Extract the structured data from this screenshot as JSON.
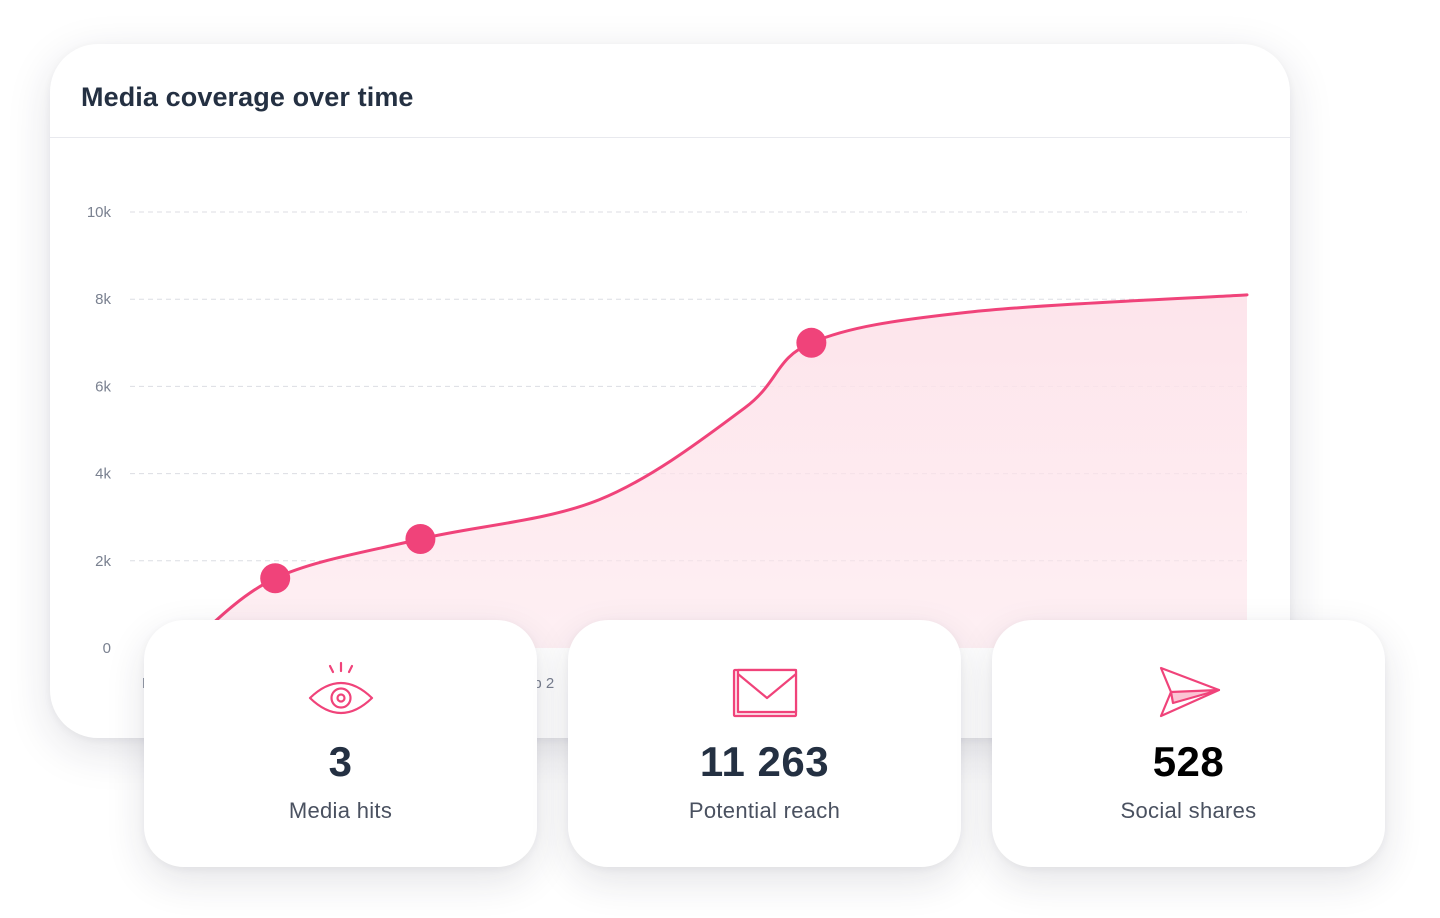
{
  "colors": {
    "accent": "#f0437a",
    "area_fill": "#fde3ea",
    "grid": "#dcdde3",
    "text_dark": "#243042",
    "text_muted": "#7a8190"
  },
  "chart_card": {
    "title": "Media coverage over time"
  },
  "chart_data": {
    "type": "area",
    "title": "Media coverage over time",
    "y_ticks": [
      "0",
      "2k",
      "4k",
      "6k",
      "8k",
      "10k"
    ],
    "ylim": [
      0,
      10000
    ],
    "x_tick_fragments": [
      "F",
      "eb 2"
    ],
    "grid": true,
    "line_points": [
      {
        "x": 0.05,
        "y": 0
      },
      {
        "x": 0.13,
        "y": 1600
      },
      {
        "x": 0.26,
        "y": 2500
      },
      {
        "x": 0.42,
        "y": 3400
      },
      {
        "x": 0.55,
        "y": 5500
      },
      {
        "x": 0.61,
        "y": 7000
      },
      {
        "x": 0.75,
        "y": 7700
      },
      {
        "x": 1.0,
        "y": 8100
      }
    ],
    "markers": [
      {
        "x": 0.13,
        "y": 1600
      },
      {
        "x": 0.26,
        "y": 2500
      },
      {
        "x": 0.61,
        "y": 7000
      }
    ]
  },
  "stats": [
    {
      "value": "3",
      "label": "Media hits",
      "icon": "eye-icon",
      "value_color": "#243042"
    },
    {
      "value": "11 263",
      "label": "Potential reach",
      "icon": "envelope-icon",
      "value_color": "#243042"
    },
    {
      "value": "528",
      "label": "Social shares",
      "icon": "paper-plane-icon",
      "value_color": "#000000"
    }
  ]
}
